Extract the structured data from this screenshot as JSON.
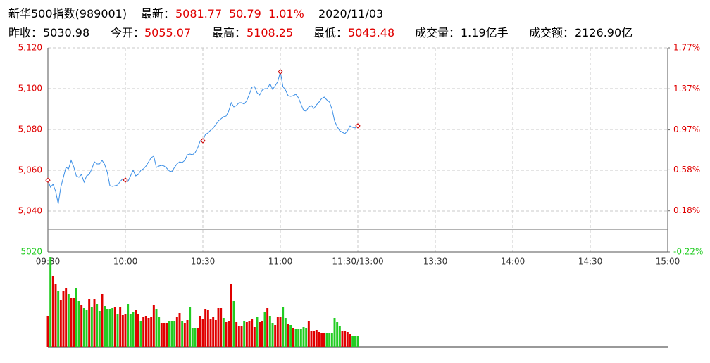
{
  "chart_data": {
    "type": "intraday",
    "name": "新华500指数(989001)",
    "latest_label": "最新：",
    "latest": 5081.77,
    "change": 50.79,
    "change_pct": "1.01%",
    "date": "2020/11/03",
    "prev_close_label": "昨收：",
    "prev_close": 5030.98,
    "open_label": "今开：",
    "open": 5055.07,
    "high_label": "最高：",
    "high": 5108.25,
    "low_label": "最低：",
    "low": 5043.48,
    "volume_label": "成交量：",
    "volume_text": "1.19亿手",
    "amount_label": "成交额：",
    "amount_text": "2126.90亿",
    "up_color": "#e00000",
    "down_color": "#22cc22",
    "line_color": "#3a8ee6",
    "marker_color": "#cc0000",
    "ylim": [
      5020,
      5120
    ],
    "yticks": [
      5020,
      {
        "value": 5040,
        "label": "5,040"
      },
      {
        "value": 5060,
        "label": "5,060"
      },
      {
        "value": 5080,
        "label": "5,080"
      },
      {
        "value": 5100,
        "label": "5,100"
      },
      {
        "value": 5120,
        "label": "5,120"
      }
    ],
    "y2lim": [
      -0.22,
      1.77
    ],
    "y2ticks": [
      {
        "value": -0.22,
        "label": "-0.22%"
      },
      {
        "value": 0.18,
        "label": "0.18%"
      },
      {
        "value": 0.58,
        "label": "0.58%"
      },
      {
        "value": 0.97,
        "label": "0.97%"
      },
      {
        "value": 1.37,
        "label": "1.37%"
      },
      {
        "value": 1.77,
        "label": "1.77%"
      }
    ],
    "xlim": [
      "09:30",
      "15:00"
    ],
    "xticks": [
      "09:30",
      "10:00",
      "10:30",
      "11:00",
      "11:30/13:00",
      "13:30",
      "14:00",
      "14:30",
      "15:00"
    ],
    "grid": true,
    "x": [
      "09:30",
      "09:31",
      "09:32",
      "09:33",
      "09:34",
      "09:35",
      "09:36",
      "09:37",
      "09:38",
      "09:39",
      "09:40",
      "09:41",
      "09:42",
      "09:43",
      "09:44",
      "09:45",
      "09:46",
      "09:47",
      "09:48",
      "09:49",
      "09:50",
      "09:51",
      "09:52",
      "09:53",
      "09:54",
      "09:55",
      "09:56",
      "09:57",
      "09:58",
      "09:59",
      "10:00",
      "10:01",
      "10:02",
      "10:03",
      "10:04",
      "10:05",
      "10:06",
      "10:07",
      "10:08",
      "10:09",
      "10:10",
      "10:11",
      "10:12",
      "10:13",
      "10:14",
      "10:15",
      "10:16",
      "10:17",
      "10:18",
      "10:19",
      "10:20",
      "10:21",
      "10:22",
      "10:23",
      "10:24",
      "10:25",
      "10:26",
      "10:27",
      "10:28",
      "10:29",
      "10:30",
      "10:31",
      "10:32",
      "10:33",
      "10:34",
      "10:35",
      "10:36",
      "10:37",
      "10:38",
      "10:39",
      "10:40",
      "10:41",
      "10:42",
      "10:43",
      "10:44",
      "10:45",
      "10:46",
      "10:47",
      "10:48",
      "10:49",
      "10:50",
      "10:51",
      "10:52",
      "10:53",
      "10:54",
      "10:55",
      "10:56",
      "10:57",
      "10:58",
      "10:59",
      "11:00",
      "11:01",
      "11:02",
      "11:03",
      "11:04",
      "11:05",
      "11:06",
      "11:07",
      "11:08",
      "11:09",
      "11:10",
      "11:11",
      "11:12",
      "11:13",
      "11:14",
      "11:15",
      "11:16",
      "11:17",
      "11:18",
      "11:19",
      "11:20",
      "11:21",
      "11:22",
      "11:23",
      "11:24",
      "11:25",
      "11:26",
      "11:27",
      "11:28",
      "11:29",
      "11:30"
    ],
    "values": [
      5055.07,
      5051.72,
      5053.1,
      5049.66,
      5043.48,
      5051.72,
      5056.55,
      5061.38,
      5060.69,
      5064.83,
      5061.72,
      5057.24,
      5056.55,
      5057.93,
      5054.14,
      5057.24,
      5057.93,
      5060.69,
      5064.14,
      5063.1,
      5063.1,
      5064.83,
      5062.76,
      5058.97,
      5052.41,
      5052.07,
      5052.41,
      5052.76,
      5054.48,
      5055.86,
      5055.17,
      5054.48,
      5057.24,
      5060.0,
      5057.24,
      5057.93,
      5060.0,
      5060.69,
      5062.07,
      5064.14,
      5066.21,
      5066.9,
      5061.38,
      5062.07,
      5062.41,
      5062.07,
      5061.03,
      5059.66,
      5059.31,
      5061.38,
      5063.1,
      5064.14,
      5063.79,
      5064.83,
      5067.59,
      5067.93,
      5067.59,
      5068.62,
      5071.03,
      5074.48,
      5074.48,
      5077.59,
      5078.28,
      5079.66,
      5080.69,
      5082.41,
      5084.14,
      5085.17,
      5086.21,
      5086.55,
      5088.97,
      5093.1,
      5091.03,
      5091.72,
      5093.1,
      5093.1,
      5092.41,
      5094.14,
      5097.24,
      5100.69,
      5101.03,
      5097.93,
      5096.9,
      5099.31,
      5100.0,
      5100.0,
      5102.41,
      5099.66,
      5101.38,
      5103.45,
      5108.25,
      5101.03,
      5099.31,
      5096.55,
      5096.21,
      5096.55,
      5097.24,
      5095.52,
      5092.41,
      5089.31,
      5088.97,
      5091.03,
      5091.72,
      5090.34,
      5092.07,
      5093.45,
      5095.17,
      5095.86,
      5094.48,
      5093.45,
      5090.0,
      5084.14,
      5081.38,
      5079.31,
      5078.62,
      5077.93,
      5079.31,
      5081.72,
      5081.03,
      5080.69,
      5081.77
    ],
    "vol_ylim": [
      0,
      128
    ],
    "volumes": [
      44,
      128,
      101,
      90,
      80,
      67,
      80,
      84,
      75,
      69,
      70,
      83,
      65,
      60,
      55,
      53,
      68,
      57,
      68,
      61,
      51,
      75,
      58,
      54,
      54,
      55,
      57,
      47,
      57,
      45,
      46,
      61,
      47,
      50,
      53,
      46,
      36,
      42,
      44,
      41,
      42,
      60,
      54,
      42,
      34,
      34,
      34,
      37,
      36,
      36,
      43,
      48,
      37,
      34,
      38,
      56,
      27,
      27,
      27,
      44,
      40,
      54,
      52,
      40,
      43,
      38,
      55,
      55,
      41,
      35,
      36,
      89,
      65,
      35,
      30,
      30,
      36,
      35,
      37,
      39,
      28,
      42,
      35,
      37,
      49,
      55,
      44,
      34,
      31,
      43,
      42,
      56,
      41,
      33,
      31,
      27,
      26,
      25,
      26,
      28,
      27,
      37,
      23,
      23,
      24,
      21,
      20,
      20,
      19,
      19,
      19,
      41,
      35,
      29,
      23,
      23,
      21,
      18,
      16,
      16,
      16
    ],
    "volume_colors": [
      "#e00000",
      "#22cc22",
      "#e00000",
      "#e00000",
      "#22cc22",
      "#e00000",
      "#e00000",
      "#e00000",
      "#22cc22",
      "#e00000",
      "#e00000",
      "#22cc22",
      "#22cc22",
      "#e00000",
      "#22cc22",
      "#22cc22",
      "#e00000",
      "#22cc22",
      "#e00000",
      "#22cc22",
      "#22cc22",
      "#e00000",
      "#22cc22",
      "#22cc22",
      "#22cc22",
      "#22cc22",
      "#e00000",
      "#22cc22",
      "#e00000",
      "#e00000",
      "#e00000",
      "#22cc22",
      "#22cc22",
      "#22cc22",
      "#e00000",
      "#e00000",
      "#22cc22",
      "#e00000",
      "#e00000",
      "#e00000",
      "#e00000",
      "#e00000",
      "#22cc22",
      "#22cc22",
      "#e00000",
      "#e00000",
      "#e00000",
      "#22cc22",
      "#22cc22",
      "#22cc22",
      "#e00000",
      "#e00000",
      "#22cc22",
      "#e00000",
      "#e00000",
      "#22cc22",
      "#22cc22",
      "#22cc22",
      "#e00000",
      "#e00000",
      "#e00000",
      "#e00000",
      "#e00000",
      "#e00000",
      "#e00000",
      "#e00000",
      "#e00000",
      "#e00000",
      "#22cc22",
      "#e00000",
      "#e00000",
      "#e00000",
      "#22cc22",
      "#e00000",
      "#e00000",
      "#e00000",
      "#22cc22",
      "#e00000",
      "#e00000",
      "#e00000",
      "#e00000",
      "#22cc22",
      "#e00000",
      "#e00000",
      "#22cc22",
      "#e00000",
      "#22cc22",
      "#22cc22",
      "#e00000",
      "#e00000",
      "#e00000",
      "#22cc22",
      "#22cc22",
      "#e00000",
      "#22cc22",
      "#e00000",
      "#22cc22",
      "#22cc22",
      "#22cc22",
      "#22cc22",
      "#22cc22",
      "#e00000",
      "#e00000",
      "#e00000",
      "#e00000",
      "#e00000",
      "#e00000",
      "#e00000",
      "#22cc22",
      "#22cc22",
      "#22cc22",
      "#22cc22",
      "#22cc22",
      "#22cc22",
      "#e00000",
      "#e00000",
      "#e00000",
      "#e00000",
      "#22cc22",
      "#22cc22",
      "#22cc22"
    ]
  }
}
